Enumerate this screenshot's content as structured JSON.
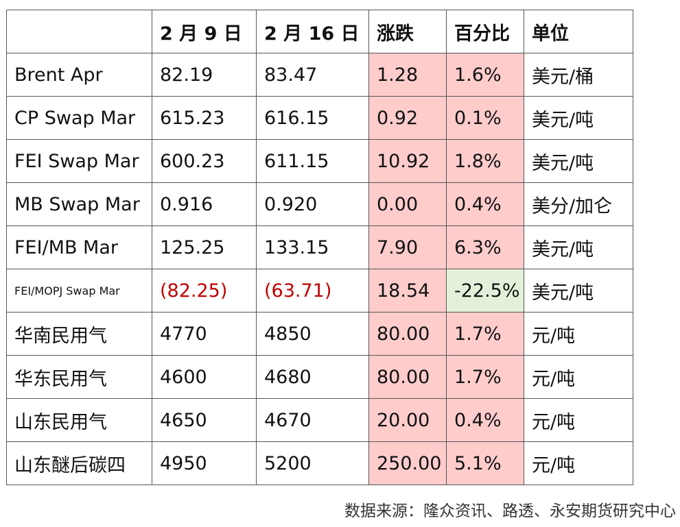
{
  "table": {
    "headers": [
      "",
      "2 月 9 日",
      "2 月 16 日",
      "涨跌",
      "百分比",
      "单位"
    ],
    "rows": [
      {
        "name": "Brent Apr",
        "feb9": "82.19",
        "feb16": "83.47",
        "change": "1.28",
        "pct": "1.6%",
        "unit": "美元/桶"
      },
      {
        "name": "CP Swap Mar",
        "feb9": "615.23",
        "feb16": "616.15",
        "change": "0.92",
        "pct": "0.1%",
        "unit": "美元/吨"
      },
      {
        "name": "FEI Swap Mar",
        "feb9": "600.23",
        "feb16": "611.15",
        "change": "10.92",
        "pct": "1.8%",
        "unit": "美元/吨"
      },
      {
        "name": "MB Swap Mar",
        "feb9": "0.916",
        "feb16": "0.920",
        "change": "0.00",
        "pct": "0.4%",
        "unit": "美分/加仑"
      },
      {
        "name": "FEI/MB Mar",
        "feb9": "125.25",
        "feb16": "133.15",
        "change": "7.90",
        "pct": "6.3%",
        "unit": "美元/吨"
      },
      {
        "name": "FEI/MOPJ Swap Mar",
        "feb9": "(82.25)",
        "feb16": "(63.71)",
        "change": "18.54",
        "pct": "-22.5%",
        "unit": "美元/吨"
      },
      {
        "name": "华南民用气",
        "feb9": "4770",
        "feb16": "4850",
        "change": "80.00",
        "pct": "1.7%",
        "unit": "元/吨"
      },
      {
        "name": "华东民用气",
        "feb9": "4600",
        "feb16": "4680",
        "change": "80.00",
        "pct": "1.7%",
        "unit": "元/吨"
      },
      {
        "name": "山东民用气",
        "feb9": "4650",
        "feb16": "4670",
        "change": "20.00",
        "pct": "0.4%",
        "unit": "元/吨"
      },
      {
        "name": "山东醚后碳四",
        "feb9": "4950",
        "feb16": "5200",
        "change": "250.00",
        "pct": "5.1%",
        "unit": "元/吨"
      }
    ]
  },
  "source": "数据来源：隆众资讯、路透、永安期货研究中心",
  "colors": {
    "change_fill": "#ffcccc",
    "negative_pct_fill": "#e3f1da",
    "negative_text": "#c00000",
    "border": "#555555"
  }
}
